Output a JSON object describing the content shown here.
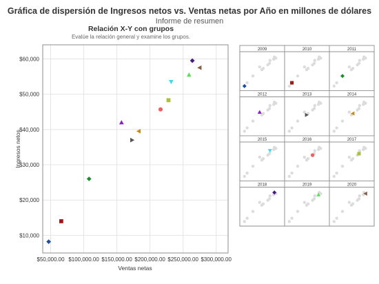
{
  "header": {
    "title": "Gráfica de dispersión de Ingresos netos vs. Ventas netas por Año en millones de dólares",
    "subtitle": "Informe de resumen"
  },
  "panel": {
    "title": "Relación X-Y con grupos",
    "subtitle": "Evalúe la relación general y examine los grupos."
  },
  "chart_data": {
    "type": "scatter",
    "xlabel": "Ventas netas",
    "ylabel": "Ingresos netos",
    "xlim": [
      38000,
      318000
    ],
    "ylim": [
      5000,
      64000
    ],
    "xticks": [
      50000,
      100000,
      150000,
      200000,
      250000,
      300000
    ],
    "xtick_labels": [
      "$50,000.00",
      "$100,000.00",
      "$150,000.00",
      "$200,000.00",
      "$250,000.00",
      "$300,000.00"
    ],
    "yticks": [
      10000,
      20000,
      30000,
      40000,
      50000,
      60000
    ],
    "ytick_labels": [
      "$10,000",
      "$20,000",
      "$30,000",
      "$40,000",
      "$50,000",
      "$60,000"
    ],
    "grid": true,
    "series": [
      {
        "name": "2009",
        "x": 47000,
        "y": 8200,
        "color": "#1f4e9c",
        "marker": "diamond"
      },
      {
        "name": "2010",
        "x": 66000,
        "y": 14000,
        "color": "#9b1b1b",
        "marker": "square"
      },
      {
        "name": "2011",
        "x": 108000,
        "y": 26000,
        "color": "#1e8c2e",
        "marker": "diamond"
      },
      {
        "name": "2012",
        "x": 157000,
        "y": 42000,
        "color": "#8a1fc2",
        "marker": "triangle-up"
      },
      {
        "name": "2013",
        "x": 173000,
        "y": 37000,
        "color": "#555555",
        "marker": "triangle-right"
      },
      {
        "name": "2014",
        "x": 183000,
        "y": 39500,
        "color": "#c88a10",
        "marker": "triangle-left"
      },
      {
        "name": "2015",
        "x": 232000,
        "y": 53500,
        "color": "#3fd9e8",
        "marker": "triangle-down"
      },
      {
        "name": "2016",
        "x": 216000,
        "y": 45700,
        "color": "#f06060",
        "marker": "circle"
      },
      {
        "name": "2017",
        "x": 228000,
        "y": 48300,
        "color": "#aac040",
        "marker": "square"
      },
      {
        "name": "2018",
        "x": 264000,
        "y": 59500,
        "color": "#4a1a7a",
        "marker": "diamond"
      },
      {
        "name": "2019",
        "x": 259000,
        "y": 55500,
        "color": "#5ce05c",
        "marker": "triangle-up"
      },
      {
        "name": "2020",
        "x": 275000,
        "y": 57500,
        "color": "#8a5a3a",
        "marker": "triangle-left"
      }
    ]
  }
}
